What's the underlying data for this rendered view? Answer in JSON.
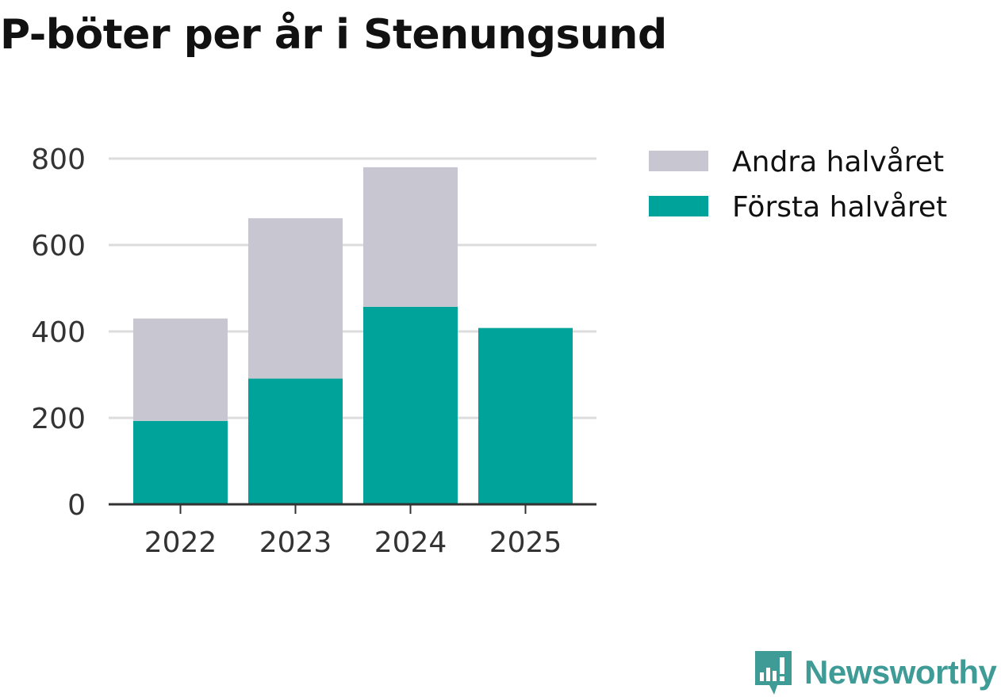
{
  "title": "P-böter per år i Stenungsund",
  "brand": {
    "name": "Newsworthy"
  },
  "colors": {
    "first_half": "#00a39a",
    "second_half": "#c8c7d1",
    "grid": "#dcdcdc",
    "axis": "#333333",
    "brand": "#3f9b96"
  },
  "chart_data": {
    "type": "bar",
    "stacked": true,
    "categories": [
      "2022",
      "2023",
      "2024",
      "2025"
    ],
    "series": [
      {
        "name": "Första halvåret",
        "values": [
          193,
          291,
          457,
          408
        ]
      },
      {
        "name": "Andra halvåret",
        "values": [
          237,
          371,
          323,
          null
        ]
      }
    ],
    "y_ticks": [
      "0",
      "200",
      "400",
      "600",
      "800"
    ],
    "ylim": [
      0,
      800
    ],
    "grid": true,
    "legend": {
      "position": "right",
      "entries": [
        "Andra halvåret",
        "Första halvåret"
      ]
    },
    "xlabel": "",
    "ylabel": ""
  }
}
